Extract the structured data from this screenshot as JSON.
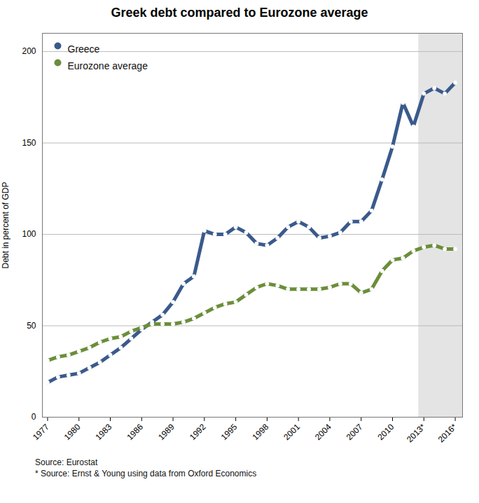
{
  "chart_data": {
    "type": "line",
    "title": "Greek debt compared to Eurozone average",
    "ylabel": "Debt in percent of GDP",
    "annotations": [
      "Source: Eurostat",
      "* Source: Ernst & Young using data from Oxford Economics"
    ],
    "x": [
      1977,
      1978,
      1979,
      1980,
      1981,
      1982,
      1983,
      1984,
      1985,
      1986,
      1987,
      1988,
      1989,
      1990,
      1991,
      1992,
      1993,
      1994,
      1995,
      1996,
      1997,
      1998,
      1999,
      2000,
      2001,
      2002,
      2003,
      2004,
      2005,
      2006,
      2007,
      2008,
      2009,
      2010,
      2011,
      2012,
      2013,
      2014,
      2015,
      2016
    ],
    "series": [
      {
        "name": "Greece",
        "color": "#3a5a8c",
        "marker": "circle",
        "line_style": "solid",
        "values": [
          19,
          22,
          23,
          24,
          27,
          30,
          34,
          38,
          43,
          48,
          52,
          56,
          63,
          73,
          77,
          102,
          100,
          100,
          104,
          101,
          95,
          94,
          98,
          104,
          107,
          104,
          98,
          99,
          101,
          107,
          107,
          113,
          130,
          148,
          172,
          159,
          177,
          180,
          177,
          183
        ]
      },
      {
        "name": "Eurozone average",
        "color": "#6b8e3a",
        "marker": "circle",
        "line_style": "solid",
        "values": [
          31,
          33,
          34,
          36,
          38,
          41,
          43,
          44,
          47,
          49,
          51,
          51,
          51,
          52,
          54,
          57,
          60,
          62,
          63,
          67,
          71,
          73,
          72,
          70,
          70,
          70,
          70,
          71,
          73,
          73,
          68,
          70,
          80,
          86,
          87,
          91,
          93,
          94,
          92,
          92
        ]
      }
    ],
    "shade": {
      "start": 2012.5,
      "end": 2018.6,
      "color": "#e4e4e4"
    },
    "xlim": [
      1976.5,
      2016.7
    ],
    "xticks": [
      1977,
      1980,
      1983,
      1986,
      1989,
      1992,
      1995,
      1998,
      2001,
      2004,
      2007,
      2010,
      {
        "value": 2013,
        "label": "2013*"
      },
      {
        "value": 2016,
        "label": "2016*"
      }
    ],
    "ylim": [
      0,
      210
    ],
    "yticks": [
      0,
      50,
      100,
      150,
      200
    ],
    "grid": true,
    "legend": "upper left"
  }
}
